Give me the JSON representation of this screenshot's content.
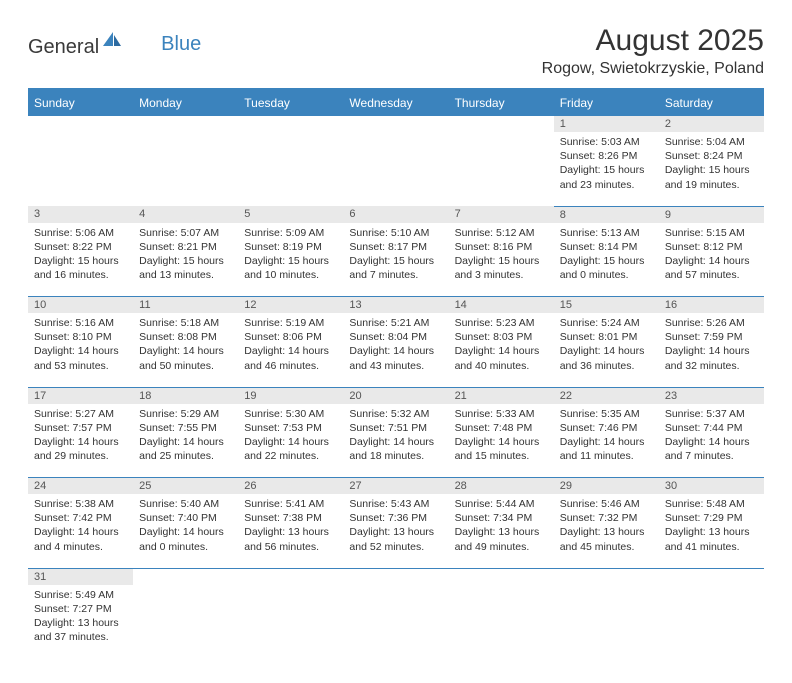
{
  "logo": {
    "part1": "General",
    "part2": "Blue"
  },
  "title": "August 2025",
  "location": "Rogow, Swietokrzyskie, Poland",
  "colors": {
    "header_bg": "#3b83bd",
    "header_text": "#ffffff",
    "daynum_bg": "#e9e9e9",
    "border": "#3b83bd",
    "text": "#333333"
  },
  "day_headers": [
    "Sunday",
    "Monday",
    "Tuesday",
    "Wednesday",
    "Thursday",
    "Friday",
    "Saturday"
  ],
  "weeks": [
    [
      null,
      null,
      null,
      null,
      null,
      {
        "n": "1",
        "sr": "5:03 AM",
        "ss": "8:26 PM",
        "dl": "15 hours and 23 minutes."
      },
      {
        "n": "2",
        "sr": "5:04 AM",
        "ss": "8:24 PM",
        "dl": "15 hours and 19 minutes."
      }
    ],
    [
      {
        "n": "3",
        "sr": "5:06 AM",
        "ss": "8:22 PM",
        "dl": "15 hours and 16 minutes."
      },
      {
        "n": "4",
        "sr": "5:07 AM",
        "ss": "8:21 PM",
        "dl": "15 hours and 13 minutes."
      },
      {
        "n": "5",
        "sr": "5:09 AM",
        "ss": "8:19 PM",
        "dl": "15 hours and 10 minutes."
      },
      {
        "n": "6",
        "sr": "5:10 AM",
        "ss": "8:17 PM",
        "dl": "15 hours and 7 minutes."
      },
      {
        "n": "7",
        "sr": "5:12 AM",
        "ss": "8:16 PM",
        "dl": "15 hours and 3 minutes."
      },
      {
        "n": "8",
        "sr": "5:13 AM",
        "ss": "8:14 PM",
        "dl": "15 hours and 0 minutes."
      },
      {
        "n": "9",
        "sr": "5:15 AM",
        "ss": "8:12 PM",
        "dl": "14 hours and 57 minutes."
      }
    ],
    [
      {
        "n": "10",
        "sr": "5:16 AM",
        "ss": "8:10 PM",
        "dl": "14 hours and 53 minutes."
      },
      {
        "n": "11",
        "sr": "5:18 AM",
        "ss": "8:08 PM",
        "dl": "14 hours and 50 minutes."
      },
      {
        "n": "12",
        "sr": "5:19 AM",
        "ss": "8:06 PM",
        "dl": "14 hours and 46 minutes."
      },
      {
        "n": "13",
        "sr": "5:21 AM",
        "ss": "8:04 PM",
        "dl": "14 hours and 43 minutes."
      },
      {
        "n": "14",
        "sr": "5:23 AM",
        "ss": "8:03 PM",
        "dl": "14 hours and 40 minutes."
      },
      {
        "n": "15",
        "sr": "5:24 AM",
        "ss": "8:01 PM",
        "dl": "14 hours and 36 minutes."
      },
      {
        "n": "16",
        "sr": "5:26 AM",
        "ss": "7:59 PM",
        "dl": "14 hours and 32 minutes."
      }
    ],
    [
      {
        "n": "17",
        "sr": "5:27 AM",
        "ss": "7:57 PM",
        "dl": "14 hours and 29 minutes."
      },
      {
        "n": "18",
        "sr": "5:29 AM",
        "ss": "7:55 PM",
        "dl": "14 hours and 25 minutes."
      },
      {
        "n": "19",
        "sr": "5:30 AM",
        "ss": "7:53 PM",
        "dl": "14 hours and 22 minutes."
      },
      {
        "n": "20",
        "sr": "5:32 AM",
        "ss": "7:51 PM",
        "dl": "14 hours and 18 minutes."
      },
      {
        "n": "21",
        "sr": "5:33 AM",
        "ss": "7:48 PM",
        "dl": "14 hours and 15 minutes."
      },
      {
        "n": "22",
        "sr": "5:35 AM",
        "ss": "7:46 PM",
        "dl": "14 hours and 11 minutes."
      },
      {
        "n": "23",
        "sr": "5:37 AM",
        "ss": "7:44 PM",
        "dl": "14 hours and 7 minutes."
      }
    ],
    [
      {
        "n": "24",
        "sr": "5:38 AM",
        "ss": "7:42 PM",
        "dl": "14 hours and 4 minutes."
      },
      {
        "n": "25",
        "sr": "5:40 AM",
        "ss": "7:40 PM",
        "dl": "14 hours and 0 minutes."
      },
      {
        "n": "26",
        "sr": "5:41 AM",
        "ss": "7:38 PM",
        "dl": "13 hours and 56 minutes."
      },
      {
        "n": "27",
        "sr": "5:43 AM",
        "ss": "7:36 PM",
        "dl": "13 hours and 52 minutes."
      },
      {
        "n": "28",
        "sr": "5:44 AM",
        "ss": "7:34 PM",
        "dl": "13 hours and 49 minutes."
      },
      {
        "n": "29",
        "sr": "5:46 AM",
        "ss": "7:32 PM",
        "dl": "13 hours and 45 minutes."
      },
      {
        "n": "30",
        "sr": "5:48 AM",
        "ss": "7:29 PM",
        "dl": "13 hours and 41 minutes."
      }
    ],
    [
      {
        "n": "31",
        "sr": "5:49 AM",
        "ss": "7:27 PM",
        "dl": "13 hours and 37 minutes."
      },
      null,
      null,
      null,
      null,
      null,
      null
    ]
  ],
  "labels": {
    "sunrise": "Sunrise:",
    "sunset": "Sunset:",
    "daylight": "Daylight:"
  }
}
